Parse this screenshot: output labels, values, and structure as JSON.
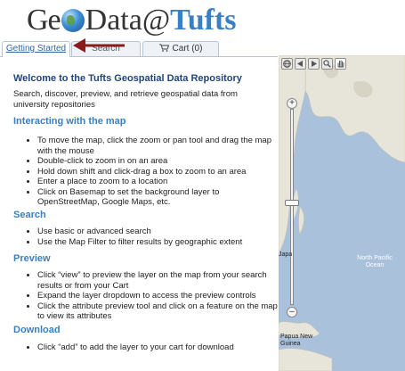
{
  "header": {
    "logo_part1": "Ge",
    "logo_part2": "Data@",
    "logo_part3": "Tufts"
  },
  "tabs": [
    {
      "label": "Getting Started",
      "active": true
    },
    {
      "label": "Search",
      "active": false
    },
    {
      "label": "Cart (0)",
      "active": false
    }
  ],
  "getting_started": {
    "title": "Welcome to the Tufts Geospatial Data Repository",
    "intro": "Search, discover, preview, and retrieve geospatial data from university repositories",
    "sections": [
      {
        "heading": "Interacting with the map",
        "items": [
          "To move the map, click the zoom or pan tool and drag the map with the mouse",
          "Double-click to zoom in on an area",
          "Hold down shift and click-drag a box to zoom to an area",
          "Enter a place to zoom to a location",
          "Click on Basemap to set the background layer to OpenStreetMap, Google Maps, etc."
        ]
      },
      {
        "heading": "Search",
        "items": [
          "Use basic or advanced search",
          "Use the Map Filter to filter results by geographic extent"
        ]
      },
      {
        "heading": "Preview",
        "items": [
          "Click “view” to preview the layer on the map from your search results or from your Cart",
          "Expand the layer dropdown to access the preview controls",
          "Click the attribute preview tool and click on a feature on the map to view its attributes"
        ]
      },
      {
        "heading": "Download",
        "items": [
          "Click “add” to add the layer to your cart for download"
        ]
      }
    ]
  },
  "map": {
    "labels": {
      "ocean_north_pacific": "North Pacific\nOcean",
      "place_papua": "Papua New\nGuinea",
      "place_japan_fragment": "Japa"
    },
    "toolbar_icons": [
      "globe-icon",
      "arrow-left-icon",
      "arrow-right-icon",
      "zoom-icon",
      "pan-hand-icon"
    ],
    "zoom_plus": "+",
    "zoom_minus": "–",
    "zoom_level_fraction": 0.48
  },
  "colors": {
    "accent_blue": "#3a7fc1",
    "heading_navy": "#22457a",
    "ocean": "#a8c0d9",
    "arrow_red": "#8b1c1c"
  }
}
